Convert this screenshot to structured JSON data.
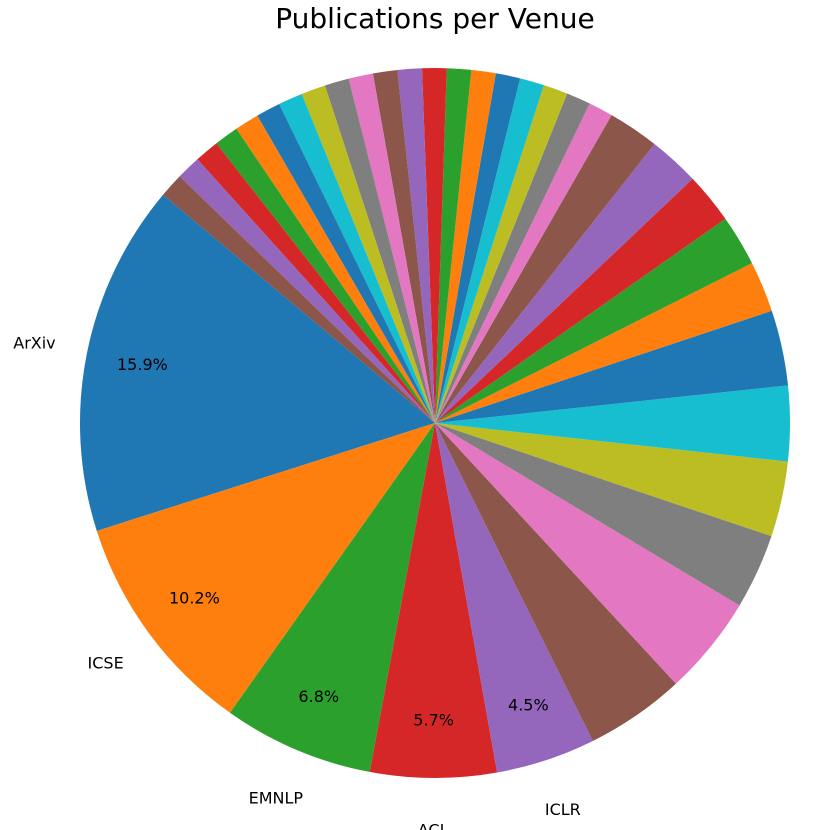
{
  "chart_data": {
    "type": "pie",
    "title": "Publications per Venue",
    "categories": [
      "ArXiv",
      "ICSE",
      "EMNLP",
      "ACL",
      "ICLR",
      null,
      null,
      null,
      null,
      null,
      null,
      null,
      null,
      null,
      null,
      null,
      null,
      null,
      null,
      null,
      null,
      null,
      null,
      null,
      null,
      null,
      null,
      null,
      null,
      null,
      null,
      null,
      null,
      null,
      null,
      null
    ],
    "values": [
      15.9,
      10.2,
      6.8,
      5.7,
      4.5,
      4.5,
      4.5,
      3.4,
      3.4,
      3.4,
      3.4,
      2.3,
      2.3,
      2.3,
      2.3,
      2.3,
      1.1,
      1.1,
      1.1,
      1.1,
      1.1,
      1.1,
      1.1,
      1.1,
      1.1,
      1.1,
      1.1,
      1.1,
      1.1,
      1.1,
      1.1,
      1.1,
      1.1,
      1.1,
      1.1,
      1.1
    ],
    "value_labels": [
      "15.9%",
      "10.2%",
      "6.8%",
      "5.7%",
      "4.5%",
      null,
      null,
      null,
      null,
      null,
      null,
      null,
      null,
      null,
      null,
      null,
      null,
      null,
      null,
      null,
      null,
      null,
      null,
      null,
      null,
      null,
      null,
      null,
      null,
      null,
      null,
      null,
      null,
      null,
      null,
      null
    ],
    "colors": [
      "#1f77b4",
      "#ff7f0e",
      "#2ca02c",
      "#d62728",
      "#9467bd",
      "#8c564b",
      "#e377c2",
      "#7f7f7f",
      "#bcbd22",
      "#17becf"
    ],
    "startangle": 140
  }
}
